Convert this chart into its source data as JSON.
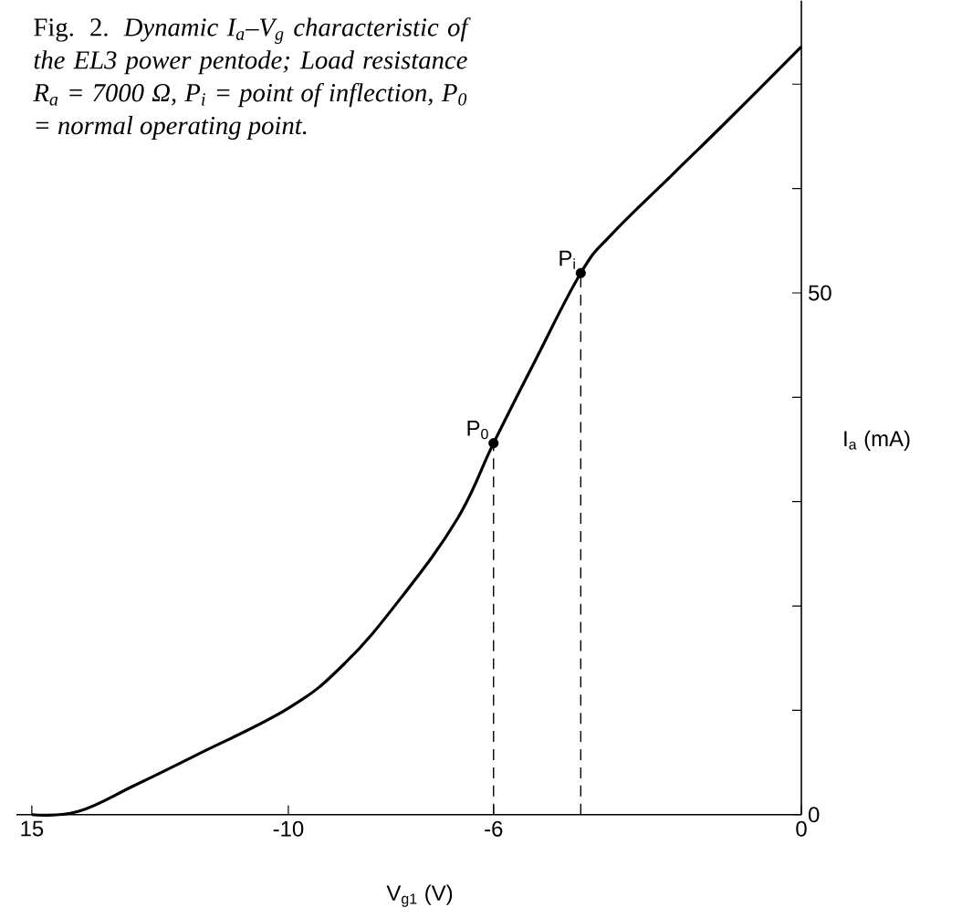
{
  "chart_data": {
    "type": "line",
    "title": "Fig. 2. *Dynamic I$_{a}$–V$_{g}$ characteristic of the EL3 power pentode; Load resistance R$_{a}$ = 7000 Ω, P$_{i}$ = point of inflection, P$_{0}$ = normal operating point.*",
    "xlabel": "V$_{g1}$ (V)",
    "ylabel": "I$_{a}$ (mA)",
    "xlim": [
      -15.3,
      0
    ],
    "ylim": [
      0,
      78
    ],
    "xticks": [
      {
        "value": -15,
        "label": "15"
      },
      -10,
      -6,
      0
    ],
    "yticks": [
      0,
      {
        "value": 10,
        "label": null
      },
      {
        "value": 20,
        "label": null
      },
      {
        "value": 30,
        "label": null
      },
      {
        "value": 40,
        "label": null
      },
      50,
      {
        "value": 60,
        "label": null
      },
      {
        "value": 70,
        "label": null
      }
    ],
    "series": [
      {
        "color": "#000000",
        "marker": "none",
        "line_style": "solid",
        "x": [
          -15,
          -14.1,
          -13,
          -11.8,
          -10,
          -8.9,
          -7.8,
          -6.7,
          -6,
          -5.2,
          -4.3,
          -3.7,
          -2.5,
          -1.4,
          0
        ],
        "values": [
          0,
          0.3,
          2.8,
          5.7,
          10.2,
          14.5,
          20.8,
          28.4,
          35.6,
          43.4,
          51.9,
          55.6,
          61.4,
          66.7,
          73.6
        ]
      },
      {
        "color": "#000000",
        "marker": "none",
        "line_style": "dashed",
        "x": [
          -6,
          -6
        ],
        "values": [
          0,
          35.6
        ]
      },
      {
        "color": "#000000",
        "marker": "none",
        "line_style": "dashed",
        "x": [
          -4.3,
          -4.3
        ],
        "values": [
          0,
          51.9
        ]
      },
      {
        "type": "scatter",
        "color": "#000000",
        "marker": "circle",
        "x": [
          -6,
          -4.3
        ],
        "values": [
          35.6,
          51.9
        ]
      }
    ],
    "annotations": [
      {
        "text": "P$_{0}$",
        "x": -6,
        "y": 35.6
      },
      {
        "text": "P$_{i}$",
        "x": -4.3,
        "y": 51.9
      }
    ]
  }
}
